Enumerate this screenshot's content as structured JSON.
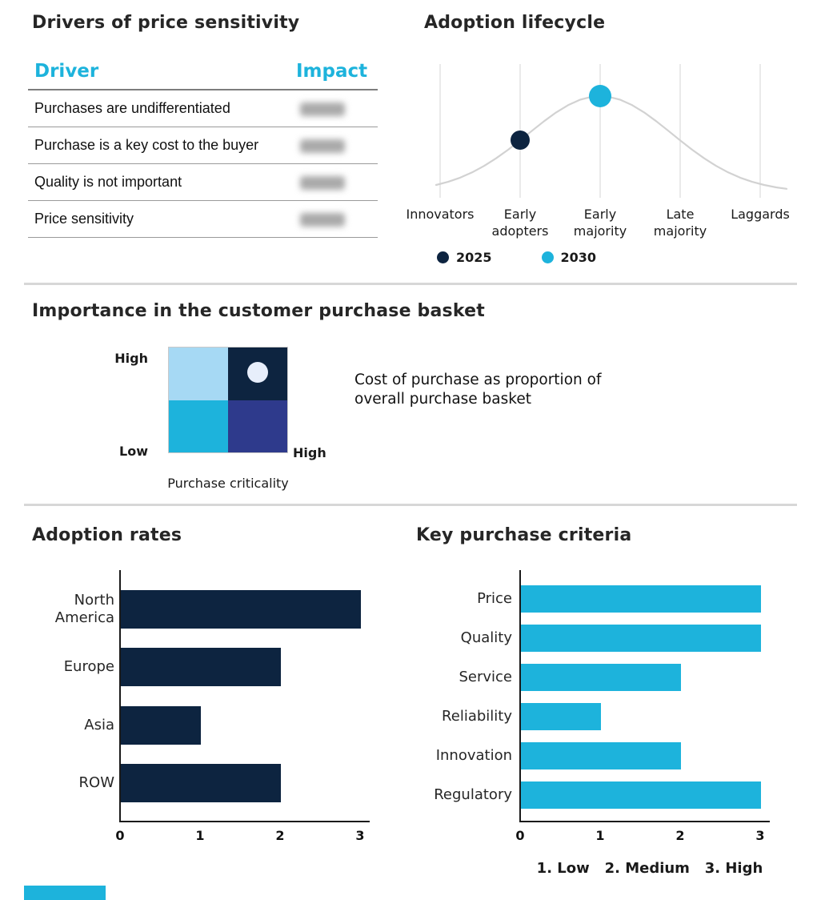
{
  "palette": {
    "navy": "#0d2440",
    "cyan": "#1db3dc",
    "indigo": "#2e3a8c",
    "light_blue": "#a6d9f4",
    "pale_marker": "#e7eefb",
    "curve_gray": "#d2d2d2",
    "divider_gray": "#d7d7d7"
  },
  "chart_data": [
    {
      "id": "drivers_of_price_sensitivity",
      "type": "table",
      "title": "Drivers of price sensitivity",
      "columns": [
        "Driver",
        "Impact"
      ],
      "rows": [
        [
          "Purchases are undifferentiated",
          ""
        ],
        [
          "Purchase is a key cost to the buyer",
          ""
        ],
        [
          "Quality is not important",
          ""
        ],
        [
          "Price sensitivity",
          ""
        ]
      ],
      "impact_values_redacted": true
    },
    {
      "id": "adoption_lifecycle",
      "type": "line",
      "title": "Adoption lifecycle",
      "x_categories": [
        "Innovators",
        "Early adopters",
        "Early majority",
        "Late majority",
        "Laggards"
      ],
      "curve": "bell-shaped adoption curve in light gray, peak at Early majority",
      "markers": [
        {
          "series": "2025",
          "category": "Early adopters",
          "color": "#0d2440"
        },
        {
          "series": "2030",
          "category": "Early majority",
          "color": "#1db3dc"
        }
      ],
      "legend_position": "bottom"
    },
    {
      "id": "importance_in_customer_purchase_basket",
      "type": "heatmap",
      "title": "Importance in the customer purchase basket",
      "x_axis_label": "Purchase criticality",
      "x_max_label": "High",
      "y_max_label": "High",
      "y_min_label": "Low",
      "annotation": "Cost of purchase as proportion of overall purchase basket",
      "quadrants": [
        {
          "position": "top-left",
          "color": "#a6d9f4"
        },
        {
          "position": "top-right",
          "color": "#0d2440",
          "marker": true,
          "marker_color": "#e7eefb"
        },
        {
          "position": "bottom-left",
          "color": "#1db3dc"
        },
        {
          "position": "bottom-right",
          "color": "#2e3a8c"
        }
      ]
    },
    {
      "id": "adoption_rates",
      "type": "bar",
      "orientation": "horizontal",
      "title": "Adoption rates",
      "categories": [
        "North America",
        "Europe",
        "Asia",
        "ROW"
      ],
      "values": [
        3,
        2,
        1,
        2
      ],
      "xlim": [
        0,
        3
      ],
      "xticks": [
        0,
        1,
        2,
        3
      ],
      "bar_color": "#0d2440"
    },
    {
      "id": "key_purchase_criteria",
      "type": "bar",
      "orientation": "horizontal",
      "title": "Key purchase criteria",
      "categories": [
        "Price",
        "Quality",
        "Service",
        "Reliability",
        "Innovation",
        "Regulatory"
      ],
      "values": [
        3,
        3,
        2,
        1,
        2,
        3
      ],
      "xlim": [
        0,
        3
      ],
      "xticks": [
        0,
        1,
        2,
        3
      ],
      "bar_color": "#1db3dc",
      "scale_note": "1. Low   2. Medium   3. High"
    }
  ]
}
